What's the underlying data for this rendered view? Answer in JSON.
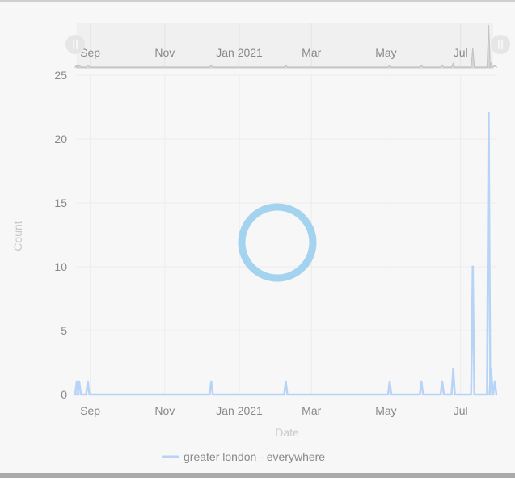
{
  "chart_data": {
    "type": "line",
    "xlabel": "Date",
    "ylabel": "Count",
    "ylim": [
      0,
      25
    ],
    "yticks": [
      "0",
      "5",
      "10",
      "15",
      "20",
      "25"
    ],
    "xticks": [
      "Sep",
      "Nov",
      "Jan 2021",
      "Mar",
      "May",
      "Jul"
    ],
    "xtick_dates": [
      "2020-09-01",
      "2020-11-01",
      "2021-01-01",
      "2021-03-01",
      "2021-05-01",
      "2021-07-01"
    ],
    "xlim": [
      "2020-08-21",
      "2021-07-31"
    ],
    "grid": true,
    "legend_position": "bottom-center",
    "series": [
      {
        "name": "greater london - everywhere",
        "color": "#b7d4f7",
        "points": [
          [
            "2020-08-21",
            1
          ],
          [
            "2020-08-23",
            1
          ],
          [
            "2020-08-30",
            1
          ],
          [
            "2020-12-09",
            1
          ],
          [
            "2021-02-08",
            1
          ],
          [
            "2021-05-04",
            1
          ],
          [
            "2021-05-30",
            1
          ],
          [
            "2021-06-16",
            1
          ],
          [
            "2021-06-25",
            2
          ],
          [
            "2021-07-11",
            10
          ],
          [
            "2021-07-24",
            22
          ],
          [
            "2021-07-26",
            2
          ],
          [
            "2021-07-29",
            1
          ]
        ]
      }
    ],
    "navigator": {
      "xticks": [
        "Sep",
        "Nov",
        "Jan 2021",
        "Mar",
        "May",
        "Jul"
      ],
      "color": "#c4c4c4"
    },
    "loading_indicator_color": "#a3d3ef"
  }
}
